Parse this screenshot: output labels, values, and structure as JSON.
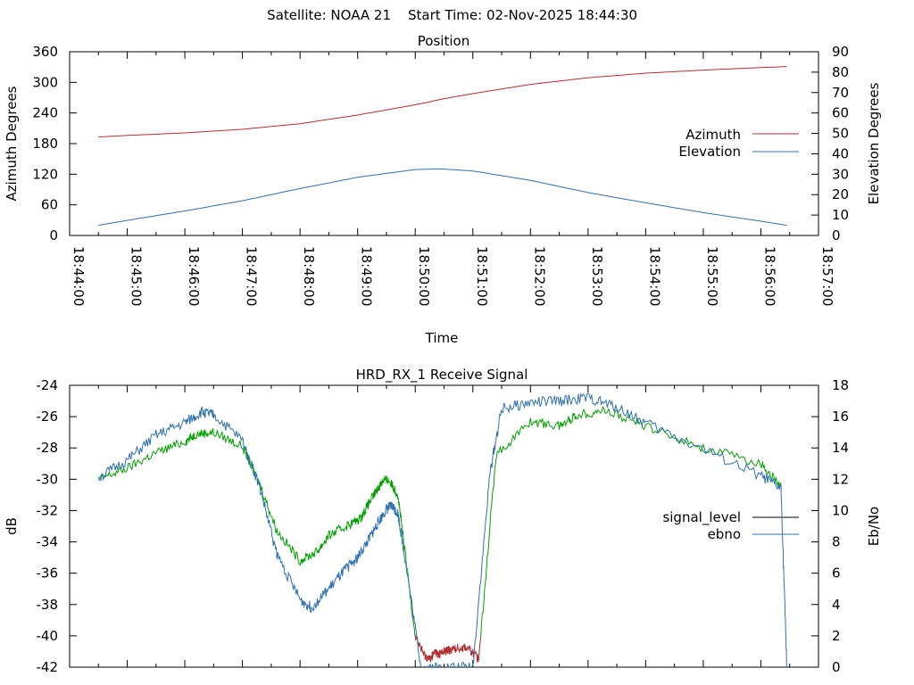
{
  "header": {
    "satellite_label": "Satellite: NOAA 21",
    "start_time_label": "Start Time: 02-Nov-2025 18:44:30"
  },
  "chart_data": [
    {
      "type": "line",
      "title": "Position",
      "xlabel": "Time",
      "ylabel": "Azimuth Degrees",
      "y2label": "Elevation Degrees",
      "xlim_minutes": [
        0,
        13
      ],
      "x_origin": "18:44:00",
      "x_tick_labels": [
        "18:44:00",
        "18:45:00",
        "18:46:00",
        "18:47:00",
        "18:48:00",
        "18:49:00",
        "18:50:00",
        "18:51:00",
        "18:52:00",
        "18:53:00",
        "18:54:00",
        "18:55:00",
        "18:56:00",
        "18:57:00"
      ],
      "ylim": [
        0,
        360
      ],
      "y_ticks": [
        0,
        60,
        120,
        180,
        240,
        300,
        360
      ],
      "y2lim": [
        0,
        90
      ],
      "y2_ticks": [
        0,
        10,
        20,
        30,
        40,
        50,
        60,
        70,
        80,
        90
      ],
      "legend_position": "right",
      "series": [
        {
          "name": "Azimuth",
          "axis": "y",
          "color": "#b03030",
          "x": [
            0.5,
            1,
            2,
            3,
            4,
            5,
            6,
            6.5,
            7,
            8,
            9,
            10,
            11,
            12,
            12.45
          ],
          "values": [
            193,
            196,
            201,
            208,
            219,
            236,
            256,
            268,
            278,
            296,
            309,
            318,
            324,
            329,
            331
          ]
        },
        {
          "name": "Elevation",
          "axis": "y2",
          "color": "#3070b0",
          "x": [
            0.5,
            1,
            2,
            3,
            4,
            5,
            6,
            6.45,
            7,
            8,
            9,
            10,
            11,
            12,
            12.45
          ],
          "values": [
            5,
            7.4,
            12,
            17,
            23,
            28.5,
            32.3,
            32.6,
            31.6,
            27,
            21,
            16,
            11.2,
            7,
            5
          ]
        }
      ]
    },
    {
      "type": "line",
      "title": "HRD_RX_1 Receive Signal",
      "ylabel": "dB",
      "y2label": "Eb/No",
      "xlim_minutes": [
        0,
        13
      ],
      "ylim": [
        -42,
        -24
      ],
      "y_ticks": [
        -42,
        -40,
        -38,
        -36,
        -34,
        -32,
        -30,
        -28,
        -26,
        -24
      ],
      "y2lim": [
        0,
        18
      ],
      "y2_ticks": [
        0,
        2,
        4,
        6,
        8,
        10,
        12,
        14,
        16,
        18
      ],
      "legend_position": "right",
      "legend": [
        {
          "name": "signal_level",
          "color": "#000000"
        },
        {
          "name": "ebno",
          "color": "#3070b0"
        }
      ],
      "series": [
        {
          "name": "signal_level",
          "axis": "y",
          "colors_by_value": {
            "above": "#00a000",
            "threshold": -40,
            "below": "#b03030"
          },
          "x": [
            0.5,
            1,
            1.5,
            2,
            2.2,
            2.5,
            3,
            3.3,
            3.6,
            4,
            4.3,
            4.5,
            4.8,
            5.05,
            5.2,
            5.35,
            5.45,
            5.55,
            5.7,
            5.8,
            6,
            6.15,
            6.25,
            6.35,
            6.4,
            6.5,
            6.6,
            6.7,
            6.9,
            7.1,
            7.4,
            8,
            8.5,
            8.8,
            9.3,
            10,
            11,
            12,
            12.35
          ],
          "values": [
            -30,
            -29.3,
            -28.3,
            -27.6,
            -27.1,
            -27,
            -27.9,
            -30.3,
            -33.3,
            -35.2,
            -34.6,
            -33.6,
            -33,
            -32.5,
            -31.5,
            -30.6,
            -30,
            -30.1,
            -31,
            -34,
            -40,
            -41.2,
            -41.5,
            -41,
            -41.2,
            -41,
            -40.9,
            -40.8,
            -40.7,
            -41.5,
            -28.5,
            -26.3,
            -26.6,
            -25.9,
            -25.6,
            -26.6,
            -28,
            -29,
            -30.5
          ]
        },
        {
          "name": "ebno",
          "axis": "y2",
          "color": "#3070b0",
          "x": [
            0.5,
            1,
            1.5,
            2,
            2.3,
            2.5,
            3,
            3.3,
            3.6,
            4,
            4.2,
            4.5,
            4.8,
            5,
            5.2,
            5.35,
            5.5,
            5.6,
            5.7,
            5.8,
            6.1,
            6.5,
            7,
            7.3,
            7.5,
            8,
            8.5,
            9,
            9.5,
            10,
            11,
            12,
            12.35,
            12.45
          ],
          "values": [
            12.1,
            13.2,
            14.8,
            15.6,
            16.3,
            16.1,
            14.5,
            11.5,
            7.2,
            4.3,
            3.8,
            5,
            6.3,
            7,
            8.2,
            9.2,
            10.1,
            10.3,
            9.8,
            7.5,
            0,
            0,
            0,
            12.5,
            16.5,
            16.9,
            17,
            17.2,
            16.6,
            15.6,
            13.9,
            12.2,
            11.4,
            0
          ]
        }
      ]
    }
  ]
}
